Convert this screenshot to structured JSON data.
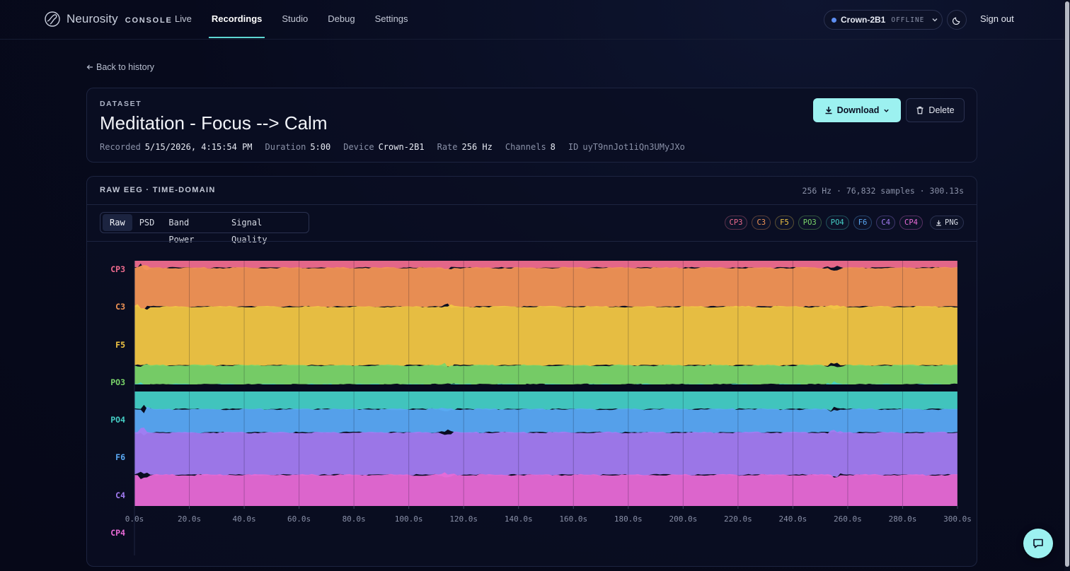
{
  "brand": {
    "name": "Neurosity",
    "sub": "CONSOLE",
    "logo_icon": "neurosity-logo-icon"
  },
  "nav": {
    "links": [
      "Live",
      "Recordings",
      "Studio",
      "Debug",
      "Settings"
    ],
    "active": "Recordings"
  },
  "device": {
    "name": "Crown-2B1",
    "status": "OFFLINE",
    "status_color": "#5d8ef2"
  },
  "signout": "Sign out",
  "back_label": "Back to history",
  "dataset": {
    "eyebrow": "DATASET",
    "title": "Meditation - Focus --> Calm",
    "meta": {
      "recorded_label": "Recorded",
      "recorded": "5/15/2026, 4:15:54 PM",
      "duration_label": "Duration",
      "duration": "5:00",
      "device_label": "Device",
      "device": "Crown-2B1",
      "rate_label": "Rate",
      "rate": "256 Hz",
      "channels_label": "Channels",
      "channels": "8",
      "id_label": "ID",
      "id": "uyT9nnJot1iQn3UMyJXo"
    },
    "download_label": "Download",
    "delete_label": "Delete"
  },
  "eeg": {
    "title": "RAW EEG · TIME-DOMAIN",
    "stats": "256 Hz · 76,832 samples · 300.13s",
    "tabs": [
      "Raw",
      "PSD",
      "Band Power",
      "Signal Quality"
    ],
    "active_tab": "Raw",
    "png_label": "PNG",
    "channels": [
      {
        "name": "CP3",
        "color": "#ef6b8e"
      },
      {
        "name": "C3",
        "color": "#f39556"
      },
      {
        "name": "F5",
        "color": "#f2c744"
      },
      {
        "name": "PO3",
        "color": "#7bd66a"
      },
      {
        "name": "PO4",
        "color": "#45cfc6"
      },
      {
        "name": "F6",
        "color": "#5aa9f5"
      },
      {
        "name": "C4",
        "color": "#a37cf2"
      },
      {
        "name": "CP4",
        "color": "#e86ad6"
      }
    ]
  },
  "chart_data": {
    "type": "area",
    "title": "RAW EEG · TIME-DOMAIN",
    "xlabel": "",
    "ylabel": "",
    "x_unit": "s",
    "xlim": [
      0,
      300
    ],
    "x_ticks": [
      "0.0s",
      "20.0s",
      "40.0s",
      "60.0s",
      "80.0s",
      "100.0s",
      "120.0s",
      "140.0s",
      "160.0s",
      "180.0s",
      "200.0s",
      "220.0s",
      "240.0s",
      "260.0s",
      "280.0s",
      "300.0s"
    ],
    "y_labels": [
      "CP3",
      "C3",
      "F5",
      "PO3",
      "PO4",
      "F6",
      "C4",
      "CP4"
    ],
    "grid": true,
    "series": [
      {
        "name": "CP3",
        "color": "#ef6b8e"
      },
      {
        "name": "C3",
        "color": "#f39556"
      },
      {
        "name": "F5",
        "color": "#f2c744"
      },
      {
        "name": "PO3",
        "color": "#7bd66a"
      },
      {
        "name": "PO4",
        "color": "#45cfc6"
      },
      {
        "name": "F6",
        "color": "#5aa9f5"
      },
      {
        "name": "C4",
        "color": "#a37cf2"
      },
      {
        "name": "CP4",
        "color": "#e86ad6"
      }
    ],
    "artifacts_s": [
      3,
      114,
      255
    ]
  }
}
